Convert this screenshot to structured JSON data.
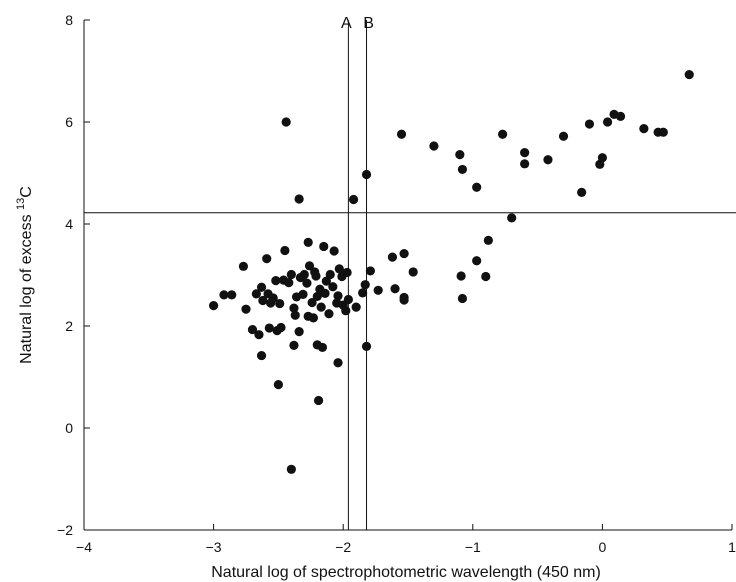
{
  "chart_data": {
    "type": "scatter",
    "xlabel": "Natural log of spectrophotometric wavelength (450 nm)",
    "ylabel": "Natural log of excess ",
    "ylabel_sup": "13",
    "ylabel_tail": "C",
    "xlim": [
      -4,
      1
    ],
    "ylim": [
      -2,
      8
    ],
    "xticks": [
      -4,
      -3,
      -2,
      -1,
      0,
      1
    ],
    "yticks": [
      -2,
      0,
      2,
      4,
      6,
      8
    ],
    "xtick_labels": [
      "−4",
      "−3",
      "−2",
      "−1",
      "0",
      "1"
    ],
    "ytick_labels": [
      "−2",
      "0",
      "2",
      "4",
      "6",
      "8"
    ],
    "grid": false,
    "marker_color": "#111111",
    "reference_lines": {
      "vertical": [
        {
          "label": "A",
          "x": -1.96
        },
        {
          "label": "B",
          "x": -1.82
        }
      ],
      "horizontal": [
        {
          "y": 4.22
        }
      ]
    },
    "points": [
      [
        -3.0,
        2.4
      ],
      [
        -2.92,
        2.61
      ],
      [
        -2.86,
        2.61
      ],
      [
        -2.77,
        3.17
      ],
      [
        -2.75,
        2.33
      ],
      [
        -2.7,
        1.93
      ],
      [
        -2.67,
        2.63
      ],
      [
        -2.65,
        1.83
      ],
      [
        -2.63,
        2.76
      ],
      [
        -2.62,
        2.5
      ],
      [
        -2.63,
        1.42
      ],
      [
        -2.59,
        3.32
      ],
      [
        -2.58,
        2.63
      ],
      [
        -2.57,
        1.96
      ],
      [
        -2.56,
        2.45
      ],
      [
        -2.54,
        2.55
      ],
      [
        -2.52,
        2.89
      ],
      [
        -2.51,
        1.91
      ],
      [
        -2.5,
        0.85
      ],
      [
        -2.49,
        2.44
      ],
      [
        -2.48,
        1.97
      ],
      [
        -2.46,
        2.9
      ],
      [
        -2.45,
        3.48
      ],
      [
        -2.44,
        6.0
      ],
      [
        -2.42,
        2.85
      ],
      [
        -2.4,
        3.01
      ],
      [
        -2.4,
        -0.81
      ],
      [
        -2.38,
        2.35
      ],
      [
        -2.38,
        1.62
      ],
      [
        -2.37,
        2.21
      ],
      [
        -2.36,
        2.57
      ],
      [
        -2.34,
        4.49
      ],
      [
        -2.33,
        2.95
      ],
      [
        -2.34,
        1.89
      ],
      [
        -2.31,
        2.62
      ],
      [
        -2.3,
        3.01
      ],
      [
        -2.28,
        2.84
      ],
      [
        -2.27,
        3.64
      ],
      [
        -2.27,
        2.19
      ],
      [
        -2.26,
        3.18
      ],
      [
        -2.24,
        2.46
      ],
      [
        -2.23,
        2.16
      ],
      [
        -2.22,
        3.06
      ],
      [
        -2.21,
        2.98
      ],
      [
        -2.2,
        2.58
      ],
      [
        -2.2,
        1.63
      ],
      [
        -2.19,
        0.54
      ],
      [
        -2.18,
        2.72
      ],
      [
        -2.17,
        2.37
      ],
      [
        -2.16,
        1.58
      ],
      [
        -2.15,
        3.56
      ],
      [
        -2.14,
        2.64
      ],
      [
        -2.13,
        2.88
      ],
      [
        -2.11,
        2.24
      ],
      [
        -2.1,
        3.01
      ],
      [
        -2.08,
        2.77
      ],
      [
        -2.07,
        3.47
      ],
      [
        -2.05,
        2.45
      ],
      [
        -2.04,
        2.59
      ],
      [
        -2.04,
        1.28
      ],
      [
        -2.03,
        3.12
      ],
      [
        -2.01,
        2.97
      ],
      [
        -2.0,
        2.41
      ],
      [
        -1.98,
        2.3
      ],
      [
        -1.97,
        3.05
      ],
      [
        -1.96,
        2.52
      ],
      [
        -1.92,
        4.48
      ],
      [
        -1.9,
        2.37
      ],
      [
        -1.85,
        2.65
      ],
      [
        -1.83,
        2.81
      ],
      [
        -1.82,
        4.97
      ],
      [
        -1.82,
        1.6
      ],
      [
        -1.79,
        3.08
      ],
      [
        -1.73,
        2.7
      ],
      [
        -1.62,
        3.35
      ],
      [
        -1.6,
        2.73
      ],
      [
        -1.55,
        5.76
      ],
      [
        -1.53,
        3.42
      ],
      [
        -1.53,
        2.56
      ],
      [
        -1.53,
        2.51
      ],
      [
        -1.46,
        3.06
      ],
      [
        -1.3,
        5.53
      ],
      [
        -1.1,
        5.36
      ],
      [
        -1.08,
        5.07
      ],
      [
        -1.09,
        2.98
      ],
      [
        -1.08,
        2.54
      ],
      [
        -0.97,
        4.72
      ],
      [
        -0.97,
        3.28
      ],
      [
        -0.9,
        2.97
      ],
      [
        -0.88,
        3.68
      ],
      [
        -0.77,
        5.76
      ],
      [
        -0.7,
        4.12
      ],
      [
        -0.6,
        5.4
      ],
      [
        -0.6,
        5.18
      ],
      [
        -0.42,
        5.26
      ],
      [
        -0.3,
        5.72
      ],
      [
        -0.16,
        4.62
      ],
      [
        -0.1,
        5.96
      ],
      [
        -0.02,
        5.17
      ],
      [
        0.0,
        5.3
      ],
      [
        0.04,
        6.0
      ],
      [
        0.09,
        6.15
      ],
      [
        0.14,
        6.11
      ],
      [
        0.32,
        5.87
      ],
      [
        0.43,
        5.8
      ],
      [
        0.47,
        5.8
      ],
      [
        0.67,
        6.93
      ]
    ]
  }
}
